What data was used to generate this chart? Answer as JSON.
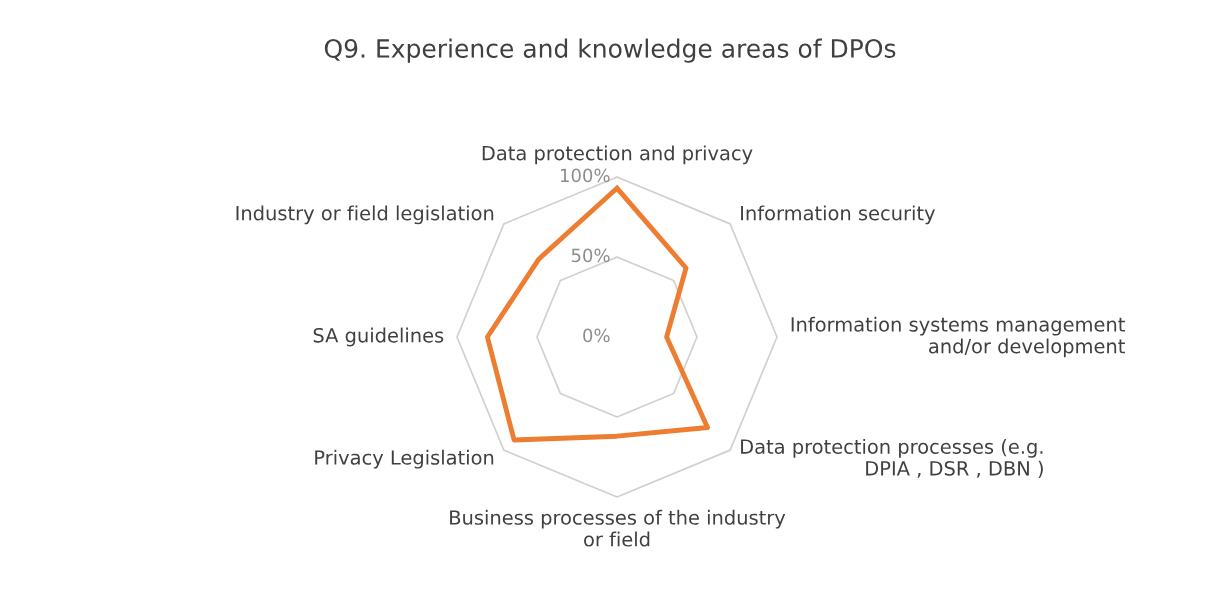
{
  "chart_data": {
    "type": "radar",
    "title": "Q9. Experience and knowledge areas of DPOs",
    "categories": [
      "Data protection and privacy",
      "Information security",
      "Information systems management\nand/or development",
      "Data protection processes (e.g.\nDPIA , DSR , DBN )",
      "Business processes of the industry\nor field",
      "Privacy Legislation",
      "SA guidelines",
      "Industry or field legislation"
    ],
    "series": [
      {
        "color": "#ed7d31",
        "values": [
          93,
          61,
          31,
          80,
          62,
          91,
          81,
          69
        ]
      }
    ],
    "ylim": [
      0,
      100
    ],
    "yticks": [
      {
        "value": 0,
        "label": "0%"
      },
      {
        "value": 50,
        "label": "50%"
      },
      {
        "value": 100,
        "label": "100%"
      }
    ],
    "grid": true,
    "marker": "none",
    "line_style": "solid"
  }
}
